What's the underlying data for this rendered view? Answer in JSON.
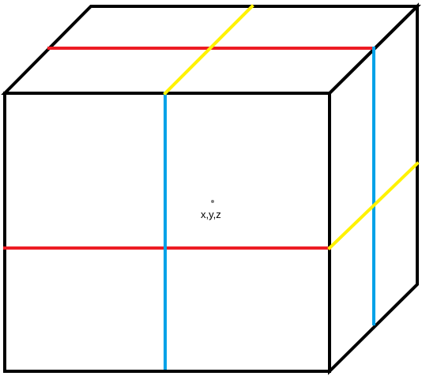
{
  "diagram": {
    "point_label": "x,y,z",
    "colors": {
      "edge": "#000000",
      "x_divider": "#ed1c24",
      "y_divider": "#00a2e8",
      "z_divider": "#fff200",
      "point": "#808080",
      "label": "#000000"
    }
  }
}
